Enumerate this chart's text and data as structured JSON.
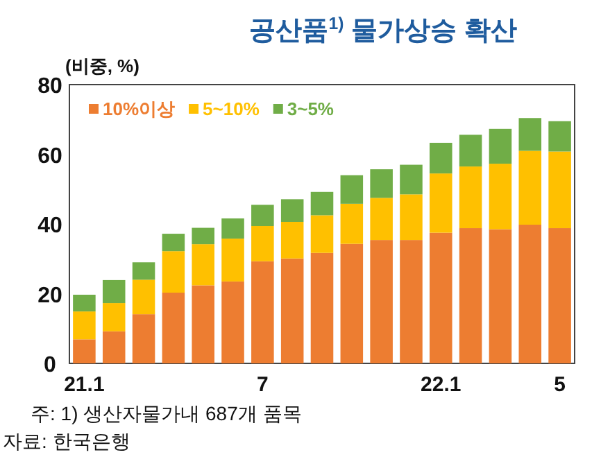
{
  "chart_data": {
    "type": "bar",
    "stacked": true,
    "title": "공산품$^{1)}$ 물가상승 확산",
    "ylabel": "(비중, %)",
    "categories": [
      "21.1",
      null,
      null,
      null,
      null,
      null,
      "7",
      null,
      null,
      null,
      null,
      null,
      "22.1",
      null,
      null,
      null,
      "5"
    ],
    "series": [
      {
        "name": "10%이상",
        "color": "#ed7d31",
        "values": [
          6.9,
          9.2,
          14.1,
          20.3,
          22.4,
          23.5,
          29.3,
          30.1,
          31.7,
          34.3,
          35.4,
          35.4,
          37.5,
          38.8,
          38.5,
          39.8,
          38.8
        ]
      },
      {
        "name": "5~10%",
        "color": "#ffc000",
        "values": [
          8.0,
          8.1,
          9.9,
          11.9,
          11.8,
          12.3,
          10.1,
          10.5,
          10.8,
          11.5,
          12.1,
          13.1,
          17.0,
          17.7,
          18.8,
          21.2,
          22.0
        ]
      },
      {
        "name": "3~5%",
        "color": "#70ad47",
        "values": [
          4.8,
          6.6,
          5.0,
          5.0,
          4.7,
          5.8,
          6.1,
          6.5,
          6.7,
          8.2,
          8.2,
          8.5,
          8.8,
          9.1,
          10.0,
          9.4,
          8.7
        ]
      }
    ],
    "ylim": [
      0,
      80
    ],
    "yticks": [
      0,
      20,
      40,
      60,
      80
    ],
    "grid": false,
    "legend": "top left",
    "annotations": [
      "주: 1) 생산자물가내 687개 품목",
      "자료: 한국은행"
    ]
  }
}
